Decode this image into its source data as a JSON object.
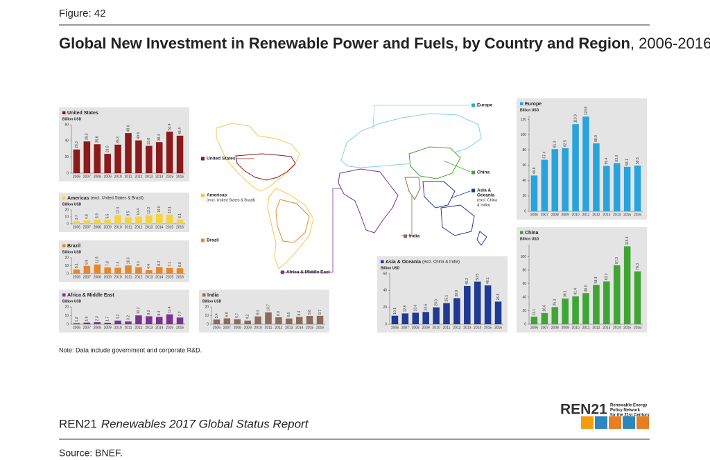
{
  "page": {
    "figure": "Figure: 42",
    "title": "Global New Investment in Renewable Power and Fuels, by Country and Region",
    "title_suffix": ", 2006-2016",
    "note": "Note: Data include government and corporate R&D.",
    "report_org": "REN21",
    "report_title": "Renewables 2017 Global Status Report",
    "source": "Source: BNEF.",
    "logo": {
      "name": "REN21",
      "lines": [
        "Renewable Energy",
        "Policy Network",
        "for the 21st Century"
      ]
    },
    "map_labels": [
      {
        "name": "Europe",
        "color": "#29a3dc"
      },
      {
        "name": "China",
        "color": "#3fa535"
      },
      {
        "name": "Asia &",
        "note": [
          "Oceania",
          "(excl. China",
          "& India)"
        ],
        "color": "#1f3a93"
      },
      {
        "name": "India",
        "color": "#8c6b5c"
      },
      {
        "name": "Africa & Middle East",
        "color": "#7b3294"
      },
      {
        "name": "United States",
        "color": "#8b1a1a"
      },
      {
        "name": "Americas",
        "note": [
          "(excl. United States & Brazil)"
        ],
        "color": "#f2c94c"
      },
      {
        "name": "Brazil",
        "color": "#e8862a"
      }
    ]
  },
  "chart_data": [
    {
      "type": "bar",
      "title": "United States",
      "unit": "Billion USD",
      "color": "#8b1a1a",
      "categories": [
        "2006",
        "2007",
        "2008",
        "2009",
        "2010",
        "2011",
        "2012",
        "2013",
        "2014",
        "2015",
        "2016"
      ],
      "values": [
        29.3,
        39.3,
        35.8,
        23.9,
        35.3,
        49.6,
        40.6,
        33.8,
        38.4,
        51.4,
        46.4
      ],
      "value_labels": [
        "29.3",
        "39.3",
        "35.8",
        "23.9",
        "35.3",
        "49.6",
        "40.6",
        "33.8",
        "38.4",
        "51.4",
        "46.4"
      ],
      "ylim": [
        0,
        60
      ],
      "yticks": [
        0,
        20,
        40,
        60
      ]
    },
    {
      "type": "bar",
      "title": "Americas",
      "subtitle": "(excl. United States & Brazil)",
      "unit": "Billion USD",
      "color": "#f5d33b",
      "categories": [
        "2006",
        "2007",
        "2008",
        "2009",
        "2010",
        "2011",
        "2012",
        "2013",
        "2014",
        "2015",
        "2016"
      ],
      "values": [
        3.7,
        4.8,
        5.9,
        5.5,
        12.4,
        9.5,
        10.4,
        12.3,
        14.0,
        13.1,
        6.1
      ],
      "value_labels": [
        "3.7",
        "4.8",
        "5.9",
        "5.5",
        "12.4",
        "9.5",
        "10.4",
        "12.3",
        "14.0",
        "13.1",
        "6.1"
      ],
      "ylim": [
        0,
        20
      ],
      "yticks": [
        0,
        10,
        20
      ]
    },
    {
      "type": "bar",
      "title": "Brazil",
      "unit": "Billion USD",
      "color": "#e8862a",
      "categories": [
        "2006",
        "2007",
        "2008",
        "2009",
        "2010",
        "2011",
        "2012",
        "2013",
        "2014",
        "2015",
        "2016"
      ],
      "values": [
        5.1,
        9.8,
        11.5,
        7.8,
        7.4,
        10.3,
        8.1,
        4.4,
        8.2,
        7.1,
        6.8
      ],
      "value_labels": [
        "5.1",
        "9.8",
        "11.5",
        "7.8",
        "7.4",
        "10.3",
        "8.1",
        "4.4",
        "8.2",
        "7.1",
        "6.8"
      ],
      "ylim": [
        0,
        20
      ],
      "yticks": [
        0,
        10,
        20
      ]
    },
    {
      "type": "bar",
      "title": "Africa & Middle East",
      "unit": "Billion USD",
      "color": "#7b3294",
      "categories": [
        "2006",
        "2007",
        "2008",
        "2009",
        "2010",
        "2011",
        "2012",
        "2013",
        "2014",
        "2015",
        "2016"
      ],
      "values": [
        1.2,
        1.9,
        2.3,
        1.7,
        4.2,
        3.2,
        10.2,
        9.2,
        8.4,
        11.4,
        7.7
      ],
      "value_labels": [
        "1.2",
        "1.9",
        "2.3",
        "1.7",
        "4.2",
        "3.2",
        "10.2",
        "9.2",
        "8.4",
        "11.4",
        "7.7"
      ],
      "ylim": [
        0,
        20
      ],
      "yticks": [
        0,
        10,
        20
      ]
    },
    {
      "type": "bar",
      "title": "India",
      "unit": "Billion USD",
      "color": "#8c6b5c",
      "categories": [
        "2006",
        "2007",
        "2008",
        "2009",
        "2010",
        "2011",
        "2012",
        "2013",
        "2014",
        "2015",
        "2016"
      ],
      "values": [
        5.4,
        6.8,
        5.7,
        4.2,
        9.0,
        13.7,
        8.0,
        6.6,
        8.4,
        9.6,
        9.7
      ],
      "value_labels": [
        "5.4",
        "6.8",
        "5.7",
        "4.2",
        "9.0",
        "13.7",
        "8.0",
        "6.6",
        "8.4",
        "9.6",
        "9.7"
      ],
      "ylim": [
        0,
        20
      ],
      "yticks": [
        0,
        10,
        20
      ]
    },
    {
      "type": "bar",
      "title": "Asia & Oceania",
      "subtitle": "(excl. China & India)",
      "unit": "Billion USD",
      "color": "#1f3a93",
      "categories": [
        "2006",
        "2007",
        "2008",
        "2009",
        "2010",
        "2011",
        "2012",
        "2013",
        "2014",
        "2015",
        "2016"
      ],
      "values": [
        10.1,
        12.8,
        13.6,
        14.5,
        20.0,
        25.1,
        30.9,
        45.3,
        50.5,
        46.1,
        26.8
      ],
      "value_labels": [
        "10.1",
        "12.8",
        "13.6",
        "14.5",
        "20.0",
        "25.1",
        "30.9",
        "45.3",
        "50.5",
        "46.1",
        "26.8"
      ],
      "ylim": [
        0,
        60
      ],
      "yticks": [
        0,
        20,
        40,
        60
      ]
    },
    {
      "type": "bar",
      "title": "Europe",
      "unit": "Billion USD",
      "color": "#29a3dc",
      "categories": [
        "2006",
        "2007",
        "2008",
        "2009",
        "2010",
        "2011",
        "2012",
        "2013",
        "2014",
        "2015",
        "2016"
      ],
      "values": [
        46.8,
        67.4,
        81.3,
        82.5,
        113.9,
        123.8,
        88.9,
        59.4,
        63.0,
        58.1,
        59.8
      ],
      "value_labels": [
        "46.8",
        "67.4",
        "81.3",
        "82.5",
        "113.9",
        "123.8",
        "88.9",
        "59.4",
        "63.0",
        "58.1",
        "59.8"
      ],
      "ylim": [
        0,
        125
      ],
      "yticks": [
        0,
        20,
        40,
        60,
        80,
        100,
        120
      ]
    },
    {
      "type": "bar",
      "title": "China",
      "unit": "Billion USD",
      "color": "#3fa535",
      "categories": [
        "2006",
        "2007",
        "2008",
        "2009",
        "2010",
        "2011",
        "2012",
        "2013",
        "2014",
        "2015",
        "2016"
      ],
      "values": [
        11.1,
        16.6,
        25.3,
        38.1,
        41.4,
        46.0,
        58.3,
        63.3,
        87.3,
        115.4,
        78.3
      ],
      "value_labels": [
        "11.1",
        "16.6",
        "25.3",
        "38.1",
        "41.4",
        "46.0",
        "58.3",
        "63.3",
        "87.3",
        "115.4",
        "78.3"
      ],
      "ylim": [
        0,
        118
      ],
      "yticks": [
        0,
        20,
        40,
        60,
        80,
        100
      ]
    }
  ]
}
